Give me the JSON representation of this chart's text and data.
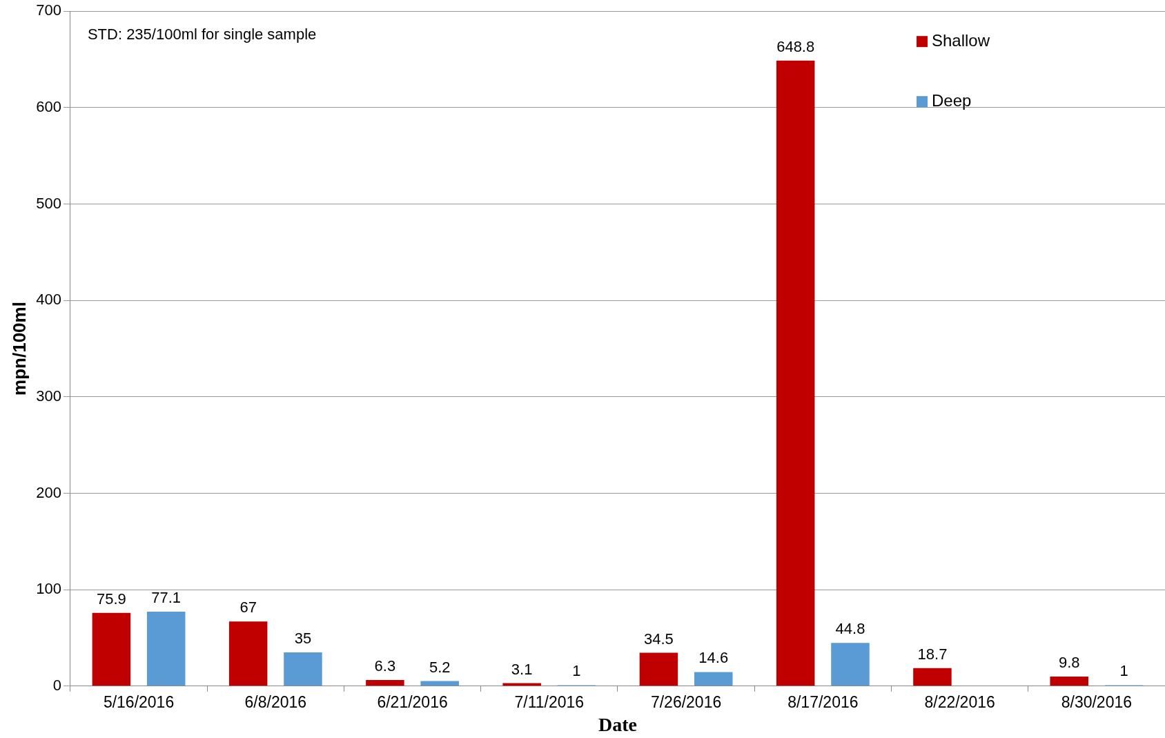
{
  "chart_data": {
    "type": "bar",
    "xlabel": "Date",
    "ylabel": "mpn/100ml",
    "annotations": [
      "STD: 235/100ml for single sample"
    ],
    "categories": [
      "5/16/2016",
      "6/8/2016",
      "6/21/2016",
      "7/11/2016",
      "7/26/2016",
      "8/17/2016",
      "8/22/2016",
      "8/30/2016"
    ],
    "series": [
      {
        "name": "Shallow",
        "color": "#c00000",
        "values": [
          75.9,
          67,
          6.3,
          3.1,
          34.5,
          648.8,
          18.7,
          9.8
        ]
      },
      {
        "name": "Deep",
        "color": "#5b9bd5",
        "values": [
          77.1,
          35,
          5.2,
          1,
          14.6,
          44.8,
          null,
          1
        ]
      }
    ],
    "ylim": [
      0,
      700
    ],
    "yticks": [
      0,
      100,
      200,
      300,
      400,
      500,
      600,
      700
    ],
    "grid": "y",
    "legend": "top right",
    "data_labels": true
  }
}
